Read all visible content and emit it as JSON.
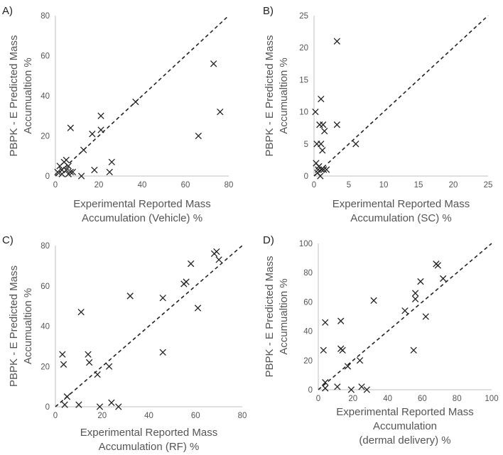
{
  "colors": {
    "axis": "#bfbfbf",
    "text": "#595959",
    "marker": "#222222",
    "fit_line": "#222222",
    "background": "#ffffff"
  },
  "chart_data": [
    {
      "type": "scatter",
      "panel_label": "A)",
      "xlim": [
        0,
        80
      ],
      "ylim": [
        0,
        80
      ],
      "xticks": [
        0,
        20,
        40,
        60,
        80
      ],
      "yticks": [
        0,
        20,
        40,
        60,
        80
      ],
      "xlabel_lines": [
        "Experimental Reported Mass",
        "Accumulation (Vehicle) %"
      ],
      "ylabel_lines": [
        "PBPK  - E Predicted Mass",
        "Accumualtion %"
      ],
      "marker": "x",
      "reference_line": "y = x (dashed)",
      "points": [
        [
          1,
          2
        ],
        [
          2,
          5
        ],
        [
          3,
          1
        ],
        [
          3,
          3
        ],
        [
          4,
          7
        ],
        [
          5,
          3
        ],
        [
          5,
          8
        ],
        [
          6,
          1
        ],
        [
          6,
          5
        ],
        [
          7,
          24
        ],
        [
          7,
          2
        ],
        [
          8,
          2
        ],
        [
          12,
          0
        ],
        [
          13,
          13
        ],
        [
          17,
          21
        ],
        [
          18,
          3
        ],
        [
          21,
          30
        ],
        [
          21,
          23
        ],
        [
          25,
          2
        ],
        [
          26,
          7
        ],
        [
          37,
          37
        ],
        [
          66,
          20
        ],
        [
          73,
          56
        ],
        [
          76,
          32
        ]
      ]
    },
    {
      "type": "scatter",
      "panel_label": "B)",
      "xlim": [
        0,
        25
      ],
      "ylim": [
        0,
        25
      ],
      "xticks": [
        0,
        5,
        10,
        15,
        20,
        25
      ],
      "yticks": [
        0,
        5,
        10,
        15,
        20,
        25
      ],
      "xlabel_lines": [
        "Experimental Reported Mass",
        "Accumulation (SC) %"
      ],
      "ylabel_lines": [
        "PBPK  - E Predicted Mass",
        "Accumualtion %"
      ],
      "marker": "x",
      "reference_line": "y = x (dashed)",
      "points": [
        [
          0.2,
          10
        ],
        [
          0.3,
          2
        ],
        [
          0.4,
          5
        ],
        [
          0.5,
          0.5
        ],
        [
          0.6,
          1
        ],
        [
          0.7,
          1.5
        ],
        [
          0.8,
          8
        ],
        [
          0.9,
          0
        ],
        [
          1,
          5
        ],
        [
          1,
          12
        ],
        [
          1.1,
          1
        ],
        [
          1.2,
          4
        ],
        [
          1.3,
          8
        ],
        [
          1.4,
          1
        ],
        [
          1.5,
          7
        ],
        [
          1.8,
          1
        ],
        [
          3.3,
          21
        ],
        [
          3.3,
          8
        ],
        [
          6,
          5
        ]
      ]
    },
    {
      "type": "scatter",
      "panel_label": "C)",
      "xlim": [
        0,
        80
      ],
      "ylim": [
        0,
        80
      ],
      "xticks": [
        0,
        20,
        40,
        60,
        80
      ],
      "yticks": [
        0,
        20,
        40,
        60,
        80
      ],
      "xlabel_lines": [
        "Experimental Reported Mass",
        "Accumulation (RF) %"
      ],
      "ylabel_lines": [
        "PBPK  - E Predicted Mass",
        "Accumualtion %"
      ],
      "marker": "x",
      "reference_line": "y = x (dashed)",
      "points": [
        [
          3,
          26
        ],
        [
          3.5,
          21
        ],
        [
          4,
          1
        ],
        [
          5,
          5
        ],
        [
          10,
          1
        ],
        [
          11,
          47
        ],
        [
          14,
          26
        ],
        [
          14.5,
          22
        ],
        [
          18,
          16
        ],
        [
          19,
          0
        ],
        [
          23,
          20
        ],
        [
          24,
          2
        ],
        [
          27,
          0
        ],
        [
          32,
          55
        ],
        [
          46,
          54
        ],
        [
          46,
          27
        ],
        [
          55,
          61
        ],
        [
          56,
          62
        ],
        [
          58,
          71
        ],
        [
          61,
          49
        ],
        [
          68,
          76
        ],
        [
          69,
          77
        ],
        [
          70,
          73
        ]
      ]
    },
    {
      "type": "scatter",
      "panel_label": "D)",
      "xlim": [
        0,
        100
      ],
      "ylim": [
        0,
        100
      ],
      "xticks": [
        0,
        20,
        40,
        60,
        80,
        100
      ],
      "yticks": [
        0,
        20,
        40,
        60,
        80,
        100
      ],
      "xlabel_lines": [
        "Experimental Reported Mass",
        "Accumulation",
        "(dermal delivery) %"
      ],
      "ylabel_lines": [
        "PBPK  - E Predicted Mass",
        "Accumualtion %"
      ],
      "marker": "x",
      "reference_line": "y = x (dashed)",
      "points": [
        [
          3,
          27
        ],
        [
          4,
          46
        ],
        [
          4,
          5
        ],
        [
          4,
          1
        ],
        [
          11,
          2
        ],
        [
          13,
          28
        ],
        [
          13,
          47
        ],
        [
          14,
          27
        ],
        [
          17,
          16
        ],
        [
          19,
          0
        ],
        [
          24,
          20
        ],
        [
          25,
          2
        ],
        [
          28,
          0
        ],
        [
          32,
          61
        ],
        [
          50,
          54
        ],
        [
          55,
          27
        ],
        [
          56,
          66
        ],
        [
          56,
          62
        ],
        [
          59,
          74
        ],
        [
          62,
          50
        ],
        [
          68,
          86
        ],
        [
          69,
          85
        ],
        [
          72,
          76
        ]
      ]
    }
  ]
}
